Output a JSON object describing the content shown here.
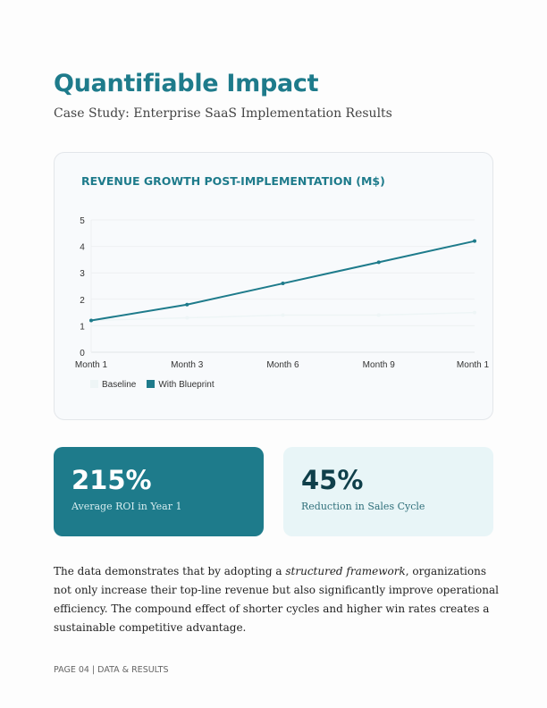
{
  "header": {
    "title": "Quantifiable Impact",
    "subtitle": "Case Study: Enterprise SaaS Implementation Results"
  },
  "chart_data": {
    "type": "line",
    "title": "REVENUE GROWTH POST-IMPLEMENTATION (M$)",
    "categories": [
      "Month 1",
      "Month 3",
      "Month 6",
      "Month 9",
      "Month 1"
    ],
    "ylim": [
      0,
      5
    ],
    "yticks": [
      0,
      1,
      2,
      3,
      4,
      5
    ],
    "grid": true,
    "legend_placement": "bottom-left",
    "series": [
      {
        "name": "Baseline",
        "values": [
          1.2,
          1.3,
          1.4,
          1.4,
          1.5
        ],
        "color": "#eef5f6"
      },
      {
        "name": "With Blueprint",
        "values": [
          1.2,
          1.8,
          2.6,
          3.4,
          4.2
        ],
        "color": "#1e7b8b"
      }
    ]
  },
  "stats": [
    {
      "value": "215%",
      "label": "Average ROI in Year 1"
    },
    {
      "value": "45%",
      "label": "Reduction in Sales Cycle"
    }
  ],
  "body": {
    "before": "The data demonstrates that by adopting a ",
    "emph": "structured framework",
    "after": ", organizations not only increase their top-line revenue but also significantly improve operational efficiency. The compound effect of shorter cycles and higher win rates creates a sustainable competitive advantage."
  },
  "footer": "PAGE 04 | DATA & RESULTS"
}
